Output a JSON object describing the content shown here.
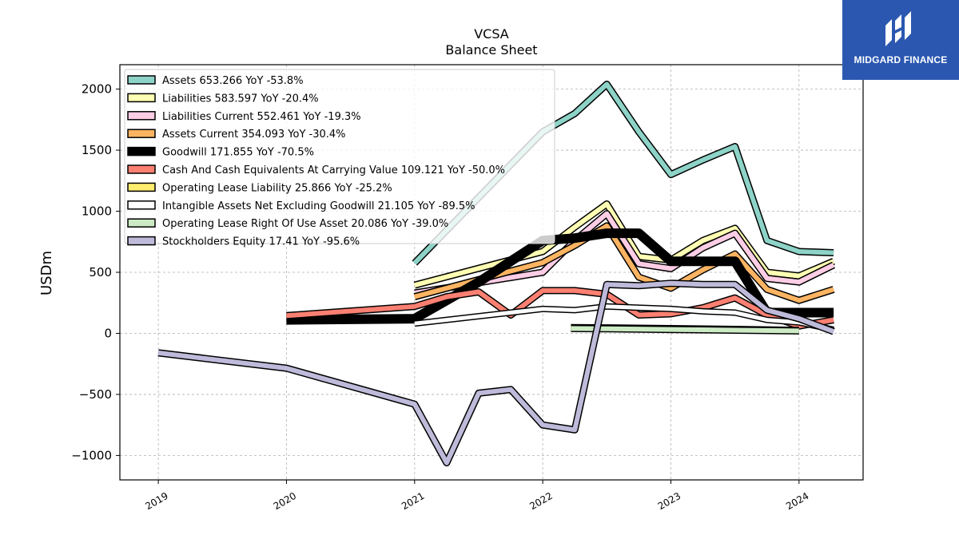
{
  "chart_data": {
    "type": "line",
    "title": "VCSA",
    "subtitle": "Balance  Sheet",
    "ylabel": "USDm",
    "xlabel": "",
    "xlim": [
      2018.7,
      2024.5
    ],
    "ylim": [
      -1200,
      2200
    ],
    "x_ticks": [
      2019,
      2020,
      2021,
      2022,
      2023,
      2024
    ],
    "x_tick_labels": [
      "2019",
      "2020",
      "2021",
      "2022",
      "2023",
      "2024"
    ],
    "y_ticks": [
      -1000,
      -500,
      0,
      500,
      1000,
      1500,
      2000
    ],
    "y_tick_labels": [
      "−1000",
      "−500",
      "0",
      "500",
      "1000",
      "1500",
      "2000"
    ],
    "grid": true,
    "legend_position": "top-left",
    "series": [
      {
        "name": "Assets  653.266 YoY -53.8%",
        "color": "#8dd3c7",
        "width": 6,
        "points": [
          [
            2021.0,
            575
          ],
          [
            2022.0,
            1650
          ],
          [
            2022.25,
            1800
          ],
          [
            2022.5,
            2040
          ],
          [
            2022.75,
            1650
          ],
          [
            2023.0,
            1300
          ],
          [
            2023.25,
            1420
          ],
          [
            2023.5,
            1530
          ],
          [
            2023.75,
            760
          ],
          [
            2024.0,
            670
          ],
          [
            2024.27,
            660
          ]
        ]
      },
      {
        "name": "Liabilities  583.597 YoY -20.4%",
        "color": "#ffffb3",
        "width": 6,
        "points": [
          [
            2021.0,
            395
          ],
          [
            2022.0,
            670
          ],
          [
            2022.25,
            870
          ],
          [
            2022.5,
            1060
          ],
          [
            2022.75,
            630
          ],
          [
            2023.0,
            600
          ],
          [
            2023.25,
            760
          ],
          [
            2023.5,
            860
          ],
          [
            2023.75,
            500
          ],
          [
            2024.0,
            470
          ],
          [
            2024.27,
            590
          ]
        ]
      },
      {
        "name": "Liabilities Current  552.461 YoY -19.3%",
        "color": "#fccde5",
        "width": 6,
        "points": [
          [
            2021.0,
            330
          ],
          [
            2022.0,
            500
          ],
          [
            2022.25,
            760
          ],
          [
            2022.5,
            980
          ],
          [
            2022.75,
            570
          ],
          [
            2023.0,
            530
          ],
          [
            2023.25,
            700
          ],
          [
            2023.5,
            820
          ],
          [
            2023.75,
            450
          ],
          [
            2024.0,
            420
          ],
          [
            2024.27,
            560
          ]
        ]
      },
      {
        "name": "Assets Current  354.093 YoY -30.4%",
        "color": "#fdb462",
        "width": 6,
        "points": [
          [
            2021.0,
            300
          ],
          [
            2022.0,
            580
          ],
          [
            2022.25,
            720
          ],
          [
            2022.5,
            880
          ],
          [
            2022.75,
            460
          ],
          [
            2023.0,
            370
          ],
          [
            2023.25,
            520
          ],
          [
            2023.5,
            650
          ],
          [
            2023.75,
            360
          ],
          [
            2024.0,
            270
          ],
          [
            2024.27,
            360
          ]
        ]
      },
      {
        "name": "Goodwill  171.855 YoY -70.5%",
        "color": "#000000",
        "width": 9,
        "points": [
          [
            2020.0,
            110
          ],
          [
            2021.0,
            120
          ],
          [
            2021.5,
            420
          ],
          [
            2022.0,
            760
          ],
          [
            2022.25,
            780
          ],
          [
            2022.5,
            820
          ],
          [
            2022.75,
            820
          ],
          [
            2023.0,
            590
          ],
          [
            2023.25,
            590
          ],
          [
            2023.5,
            590
          ],
          [
            2023.75,
            170
          ],
          [
            2024.0,
            170
          ],
          [
            2024.27,
            170
          ]
        ]
      },
      {
        "name": "Cash And Cash Equivalents At Carrying Value  109.121 YoY -50.0%",
        "color": "#fb8072",
        "width": 6,
        "points": [
          [
            2020.0,
            145
          ],
          [
            2021.0,
            220
          ],
          [
            2021.25,
            300
          ],
          [
            2021.5,
            340
          ],
          [
            2021.75,
            150
          ],
          [
            2022.0,
            350
          ],
          [
            2022.25,
            350
          ],
          [
            2022.5,
            320
          ],
          [
            2022.75,
            150
          ],
          [
            2023.0,
            160
          ],
          [
            2023.25,
            210
          ],
          [
            2023.5,
            290
          ],
          [
            2023.75,
            150
          ],
          [
            2024.0,
            60
          ],
          [
            2024.27,
            110
          ]
        ]
      },
      {
        "name": "Operating Lease Liability  25.866 YoY -25.2%",
        "color": "#ffed6f",
        "width": 5,
        "points": [
          [
            2022.22,
            50
          ],
          [
            2022.5,
            48
          ],
          [
            2023.0,
            42
          ],
          [
            2023.5,
            36
          ],
          [
            2024.0,
            28
          ]
        ]
      },
      {
        "name": "Intangible Assets Net Excluding Goodwill  21.105 YoY -89.5%",
        "color": "#ffffff",
        "width": 5,
        "points": [
          [
            2021.0,
            80
          ],
          [
            2022.0,
            200
          ],
          [
            2022.25,
            190
          ],
          [
            2022.5,
            220
          ],
          [
            2022.75,
            210
          ],
          [
            2023.0,
            200
          ],
          [
            2023.25,
            180
          ],
          [
            2023.5,
            170
          ],
          [
            2023.75,
            110
          ],
          [
            2024.0,
            90
          ],
          [
            2024.27,
            30
          ]
        ]
      },
      {
        "name": "Operating Lease Right Of Use Asset  20.086 YoY -39.0%",
        "color": "#ccebc5",
        "width": 6,
        "points": [
          [
            2022.22,
            40
          ],
          [
            2022.5,
            38
          ],
          [
            2023.0,
            32
          ],
          [
            2023.5,
            26
          ],
          [
            2024.0,
            20
          ]
        ]
      },
      {
        "name": "Stockholders Equity  17.41 YoY -95.6%",
        "color": "#bebada",
        "width": 6,
        "points": [
          [
            2019.0,
            -160
          ],
          [
            2020.0,
            -285
          ],
          [
            2021.0,
            -580
          ],
          [
            2021.25,
            -1060
          ],
          [
            2021.5,
            -490
          ],
          [
            2021.75,
            -460
          ],
          [
            2022.0,
            -750
          ],
          [
            2022.25,
            -790
          ],
          [
            2022.5,
            400
          ],
          [
            2022.75,
            390
          ],
          [
            2023.0,
            410
          ],
          [
            2023.25,
            400
          ],
          [
            2023.5,
            400
          ],
          [
            2023.75,
            190
          ],
          [
            2024.0,
            120
          ],
          [
            2024.27,
            15
          ]
        ]
      }
    ]
  },
  "logo": {
    "name": "MIDGARD FINANCE",
    "background": "#2b57b0"
  }
}
